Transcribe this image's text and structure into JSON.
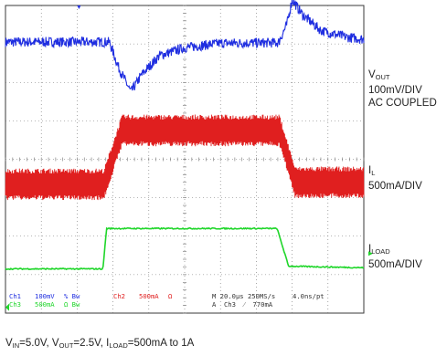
{
  "labels": {
    "vout": {
      "main": "V",
      "sub": "OUT",
      "l2": "100mV/DIV",
      "l3": "AC COUPLED"
    },
    "il": {
      "main": "I",
      "sub": "L",
      "l2": "500mA/DIV"
    },
    "iload": {
      "main": "I",
      "sub": "LOAD",
      "l2": "500mA/DIV"
    }
  },
  "scope_bar": {
    "ch1": "Ch1",
    "ch1_scale": "100mV",
    "ch1_flag": "% Bw",
    "ch2": "Ch2",
    "ch2_scale": "500mA",
    "ch2_flag": "Ω",
    "ch3": "Ch3",
    "ch3_scale": "500mA",
    "ch3_flag": "Ω Bw",
    "timebase": "M 20.0µs 250MS/s",
    "timebase_res": "4.0ns/pt",
    "trigger": "A  Ch3  ⁄  770mA"
  },
  "caption": {
    "vin": "V",
    "vin_sub": "IN",
    "vin_val": "=5.0V, ",
    "vout": "V",
    "vout_sub": "OUT",
    "vout_val": "=2.5V, ",
    "iload": "I",
    "iload_sub": "LOAD",
    "iload_val": "=500mA to 1A"
  },
  "colors": {
    "vout": "#1f2ee0",
    "il": "#e01f1f",
    "iload": "#1fd62a",
    "grid": "#6f6f6f",
    "border": "#3a3a3a"
  },
  "chart_data": {
    "type": "line",
    "x_divisions": 10,
    "y_divisions": 8,
    "x_unit": "µs",
    "x_per_div": 20,
    "series": [
      {
        "name": "VOUT",
        "scale": "100mV/DIV",
        "coupling": "AC",
        "points_div": [
          [
            0,
            7.05
          ],
          [
            2.9,
            7.05
          ],
          [
            3.15,
            6.4
          ],
          [
            3.5,
            5.75
          ],
          [
            3.8,
            6.2
          ],
          [
            4.3,
            6.7
          ],
          [
            5,
            6.9
          ],
          [
            6,
            7.02
          ],
          [
            10,
            7.05
          ]
        ],
        "points_div_b": [
          [
            7.6,
            7.0
          ],
          [
            7.85,
            7.5
          ],
          [
            8.0,
            8.15
          ],
          [
            8.3,
            7.75
          ],
          [
            8.8,
            7.35
          ],
          [
            9.5,
            7.18
          ],
          [
            10,
            7.12
          ]
        ]
      },
      {
        "name": "IL",
        "scale": "500mA/DIV",
        "low_level_div": 3.35,
        "high_level_div": 4.75,
        "ripple_pp_div": 0.75,
        "step_up": [
          2.75,
          3.25
        ],
        "step_down": [
          7.65,
          8.1
        ]
      },
      {
        "name": "ILOAD",
        "scale": "500mA/DIV",
        "levels_div": [
          [
            0,
            1.15
          ],
          [
            2.72,
            1.15
          ],
          [
            2.82,
            2.2
          ],
          [
            7.58,
            2.2
          ],
          [
            7.9,
            1.22
          ],
          [
            10,
            1.18
          ]
        ]
      }
    ]
  }
}
